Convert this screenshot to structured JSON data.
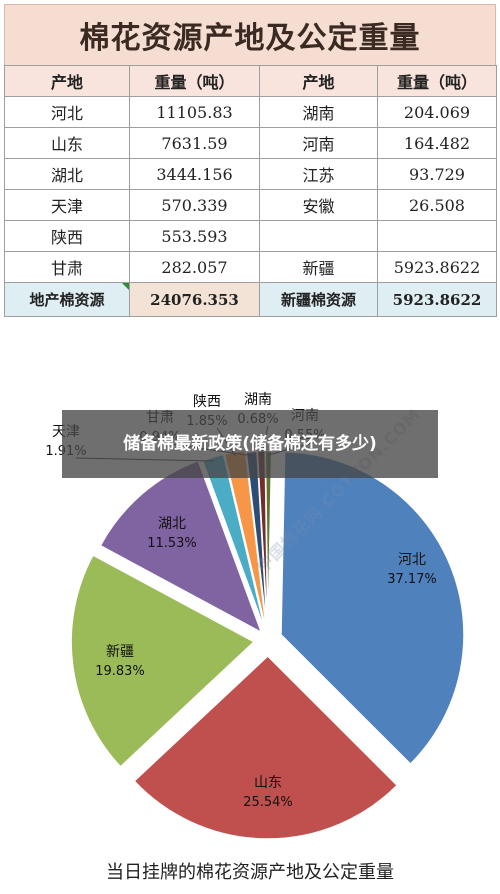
{
  "header": {
    "title": "棉花资源产地及公定重量"
  },
  "table": {
    "headers": [
      "产地",
      "重量（吨）",
      "产地",
      "重量（吨）"
    ],
    "rows": [
      [
        "河北",
        "11105.83",
        "湖南",
        "204.069"
      ],
      [
        "山东",
        "7631.59",
        "河南",
        "164.482"
      ],
      [
        "湖北",
        "3444.156",
        "江苏",
        "93.729"
      ],
      [
        "天津",
        "570.339",
        "安徽",
        "26.508"
      ],
      [
        "陕西",
        "553.593",
        "",
        ""
      ],
      [
        "甘肃",
        "282.057",
        "新疆",
        "5923.8622"
      ]
    ],
    "footer": [
      "地产棉资源",
      "24076.353",
      "新疆棉资源",
      "5923.8622"
    ]
  },
  "overlay": {
    "text": "储备棉最新政策(储备棉还有多少)"
  },
  "watermark": {
    "text": "中国棉花网 COTTON.COM"
  },
  "chart_data": {
    "type": "pie",
    "caption": "当日挂牌的棉花资源产地及公定重量",
    "slices": [
      {
        "label": "河北",
        "pct_text": "37.17%",
        "value": 37.17,
        "color": "#4f81bd"
      },
      {
        "label": "山东",
        "pct_text": "25.54%",
        "value": 25.54,
        "color": "#c0504d"
      },
      {
        "label": "新疆",
        "pct_text": "19.83%",
        "value": 19.83,
        "color": "#9bbb59"
      },
      {
        "label": "湖北",
        "pct_text": "11.53%",
        "value": 11.53,
        "color": "#8064a2"
      },
      {
        "label": "天津",
        "pct_text": "1.91%",
        "value": 1.91,
        "color": "#4bacc6"
      },
      {
        "label": "陕西",
        "pct_text": "1.85%",
        "value": 1.85,
        "color": "#f79646"
      },
      {
        "label": "甘肃",
        "pct_text": "0.94%",
        "value": 0.94,
        "color": "#2c4d75"
      },
      {
        "label": "湖南",
        "pct_text": "0.68%",
        "value": 0.68,
        "color": "#772c2a"
      },
      {
        "label": "河南",
        "pct_text": "0.55%",
        "value": 0.55,
        "color": "#5f7530"
      }
    ]
  }
}
